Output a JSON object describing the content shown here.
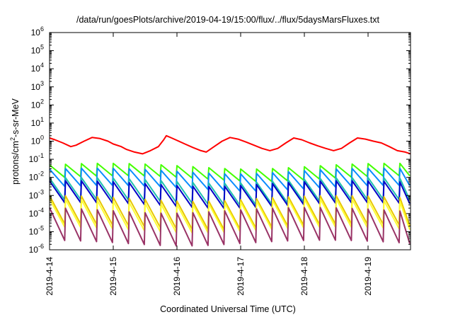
{
  "chart_data": {
    "type": "line",
    "title": "/data/run/goesPlots/archive/2019-04-19/15:00/flux/../flux/5daysMarsFluxes.txt",
    "xlabel": "Coordinated Universal Time (UTC)",
    "ylabel": {
      "pre": "protons/cm",
      "sup": "2",
      "post": "-s-sr-MeV"
    },
    "y_scale": "log",
    "ylim": [
      1e-06,
      1000000.0
    ],
    "y_ticks": [
      {
        "value": 1e-06,
        "base": "10",
        "exp": "-6"
      },
      {
        "value": 1e-05,
        "base": "10",
        "exp": "-5"
      },
      {
        "value": 0.0001,
        "base": "10",
        "exp": "-4"
      },
      {
        "value": 0.001,
        "base": "10",
        "exp": "-3"
      },
      {
        "value": 0.01,
        "base": "10",
        "exp": "-2"
      },
      {
        "value": 0.1,
        "base": "10",
        "exp": "-1"
      },
      {
        "value": 1.0,
        "base": "10",
        "exp": "0"
      },
      {
        "value": 10.0,
        "base": "10",
        "exp": "1"
      },
      {
        "value": 100.0,
        "base": "10",
        "exp": "2"
      },
      {
        "value": 1000.0,
        "base": "10",
        "exp": "3"
      },
      {
        "value": 10000.0,
        "base": "10",
        "exp": "4"
      },
      {
        "value": 100000.0,
        "base": "10",
        "exp": "5"
      },
      {
        "value": 1000000.0,
        "base": "10",
        "exp": "6"
      }
    ],
    "x_unit": "day",
    "xlim": [
      "2019-4-14",
      "2019-4-19 16:00"
    ],
    "x_ticks": [
      "2019-4-14",
      "2019-4-15",
      "2019-4-16",
      "2019-4-17",
      "2019-4-18",
      "2019-4-19"
    ],
    "grid": false,
    "legend": "none",
    "series": [
      {
        "color": "#ff0000",
        "x": [
          "2019-4-14 00:00",
          "2019-4-14 02:00",
          "2019-4-14 05:00",
          "2019-4-14 08:00",
          "2019-4-14 10:00",
          "2019-4-14 13:00",
          "2019-4-14 16:00",
          "2019-4-14 19:00",
          "2019-4-14 22:00",
          "2019-4-15 00:00",
          "2019-4-15 03:00",
          "2019-4-15 05:00",
          "2019-4-15 08:00",
          "2019-4-15 11:00",
          "2019-4-15 14:00",
          "2019-4-15 17:00",
          "2019-4-15 19:00",
          "2019-4-15 20:00",
          "2019-4-15 22:00",
          "2019-4-16 00:00",
          "2019-4-16 03:00",
          "2019-4-16 06:00",
          "2019-4-16 09:00",
          "2019-4-16 11:00",
          "2019-4-16 14:00",
          "2019-4-16 17:00",
          "2019-4-16 20:00",
          "2019-4-16 23:00",
          "2019-4-17 02:00",
          "2019-4-17 05:00",
          "2019-4-17 08:00",
          "2019-4-17 11:00",
          "2019-4-17 14:00",
          "2019-4-17 17:00",
          "2019-4-17 20:00",
          "2019-4-17 23:00",
          "2019-4-18 02:00",
          "2019-4-18 05:00",
          "2019-4-18 08:00",
          "2019-4-18 11:00",
          "2019-4-18 14:00",
          "2019-4-18 17:00",
          "2019-4-18 20:00",
          "2019-4-18 23:00",
          "2019-4-19 02:00",
          "2019-4-19 05:00",
          "2019-4-19 08:00",
          "2019-4-19 11:00",
          "2019-4-19 14:00",
          "2019-4-19 16:00"
        ],
        "y": [
          1.5,
          1.2,
          0.8,
          0.5,
          0.6,
          1.0,
          1.6,
          1.4,
          1.0,
          0.7,
          0.5,
          0.35,
          0.25,
          0.2,
          0.3,
          0.5,
          1.2,
          2.0,
          1.5,
          1.1,
          0.7,
          0.45,
          0.3,
          0.25,
          0.5,
          1.0,
          1.6,
          1.3,
          0.9,
          0.6,
          0.4,
          0.3,
          0.4,
          0.8,
          1.5,
          1.2,
          0.8,
          0.55,
          0.4,
          0.3,
          0.4,
          0.8,
          1.5,
          1.3,
          1.0,
          0.8,
          0.5,
          0.3,
          0.25,
          0.2
        ]
      },
      {
        "color": "#44ff00",
        "base": 0.02,
        "amp": 2.2,
        "period_h": 6
      },
      {
        "color": "#0a8cff",
        "base": 0.008,
        "amp": 3.0,
        "period_h": 6
      },
      {
        "color": "#20c0b0",
        "base": 0.0018,
        "amp": 4.0,
        "period_h": 6
      },
      {
        "color": "#0000c8",
        "base": 0.0012,
        "amp": 4.0,
        "period_h": 6
      },
      {
        "color": "#e8c800",
        "base": 0.00012,
        "amp": 6.0,
        "period_h": 6
      },
      {
        "color": "#ffff33",
        "base": 8e-05,
        "amp": 6.0,
        "period_h": 6
      },
      {
        "color": "#993366",
        "base": 2e-05,
        "amp": 8.0,
        "period_h": 6
      }
    ]
  }
}
